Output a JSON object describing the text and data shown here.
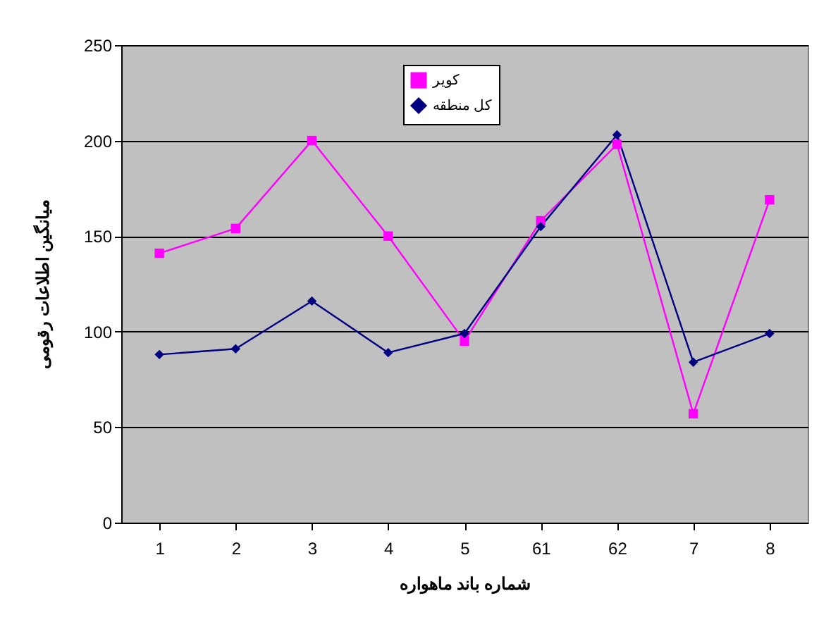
{
  "chart_data": {
    "type": "line",
    "xlabel": "شماره باند ماهواره",
    "ylabel": "میانگین اطلاعات رقومی",
    "categories": [
      "1",
      "2",
      "3",
      "4",
      "5",
      "61",
      "62",
      "7",
      "8"
    ],
    "series": [
      {
        "name": "کویر",
        "color": "#ff00ff",
        "marker": "square",
        "values": [
          141,
          154,
          200,
          150,
          95,
          158,
          198,
          57,
          169
        ]
      },
      {
        "name": "کل منطقه",
        "color": "#000080",
        "marker": "diamond",
        "values": [
          88,
          91,
          116,
          89,
          99,
          155,
          203,
          84,
          99
        ]
      }
    ],
    "ylim": [
      0,
      250
    ],
    "yticks": [
      0,
      50,
      100,
      150,
      200,
      250
    ],
    "grid": "y",
    "legend": "top",
    "line_style": "solid"
  }
}
